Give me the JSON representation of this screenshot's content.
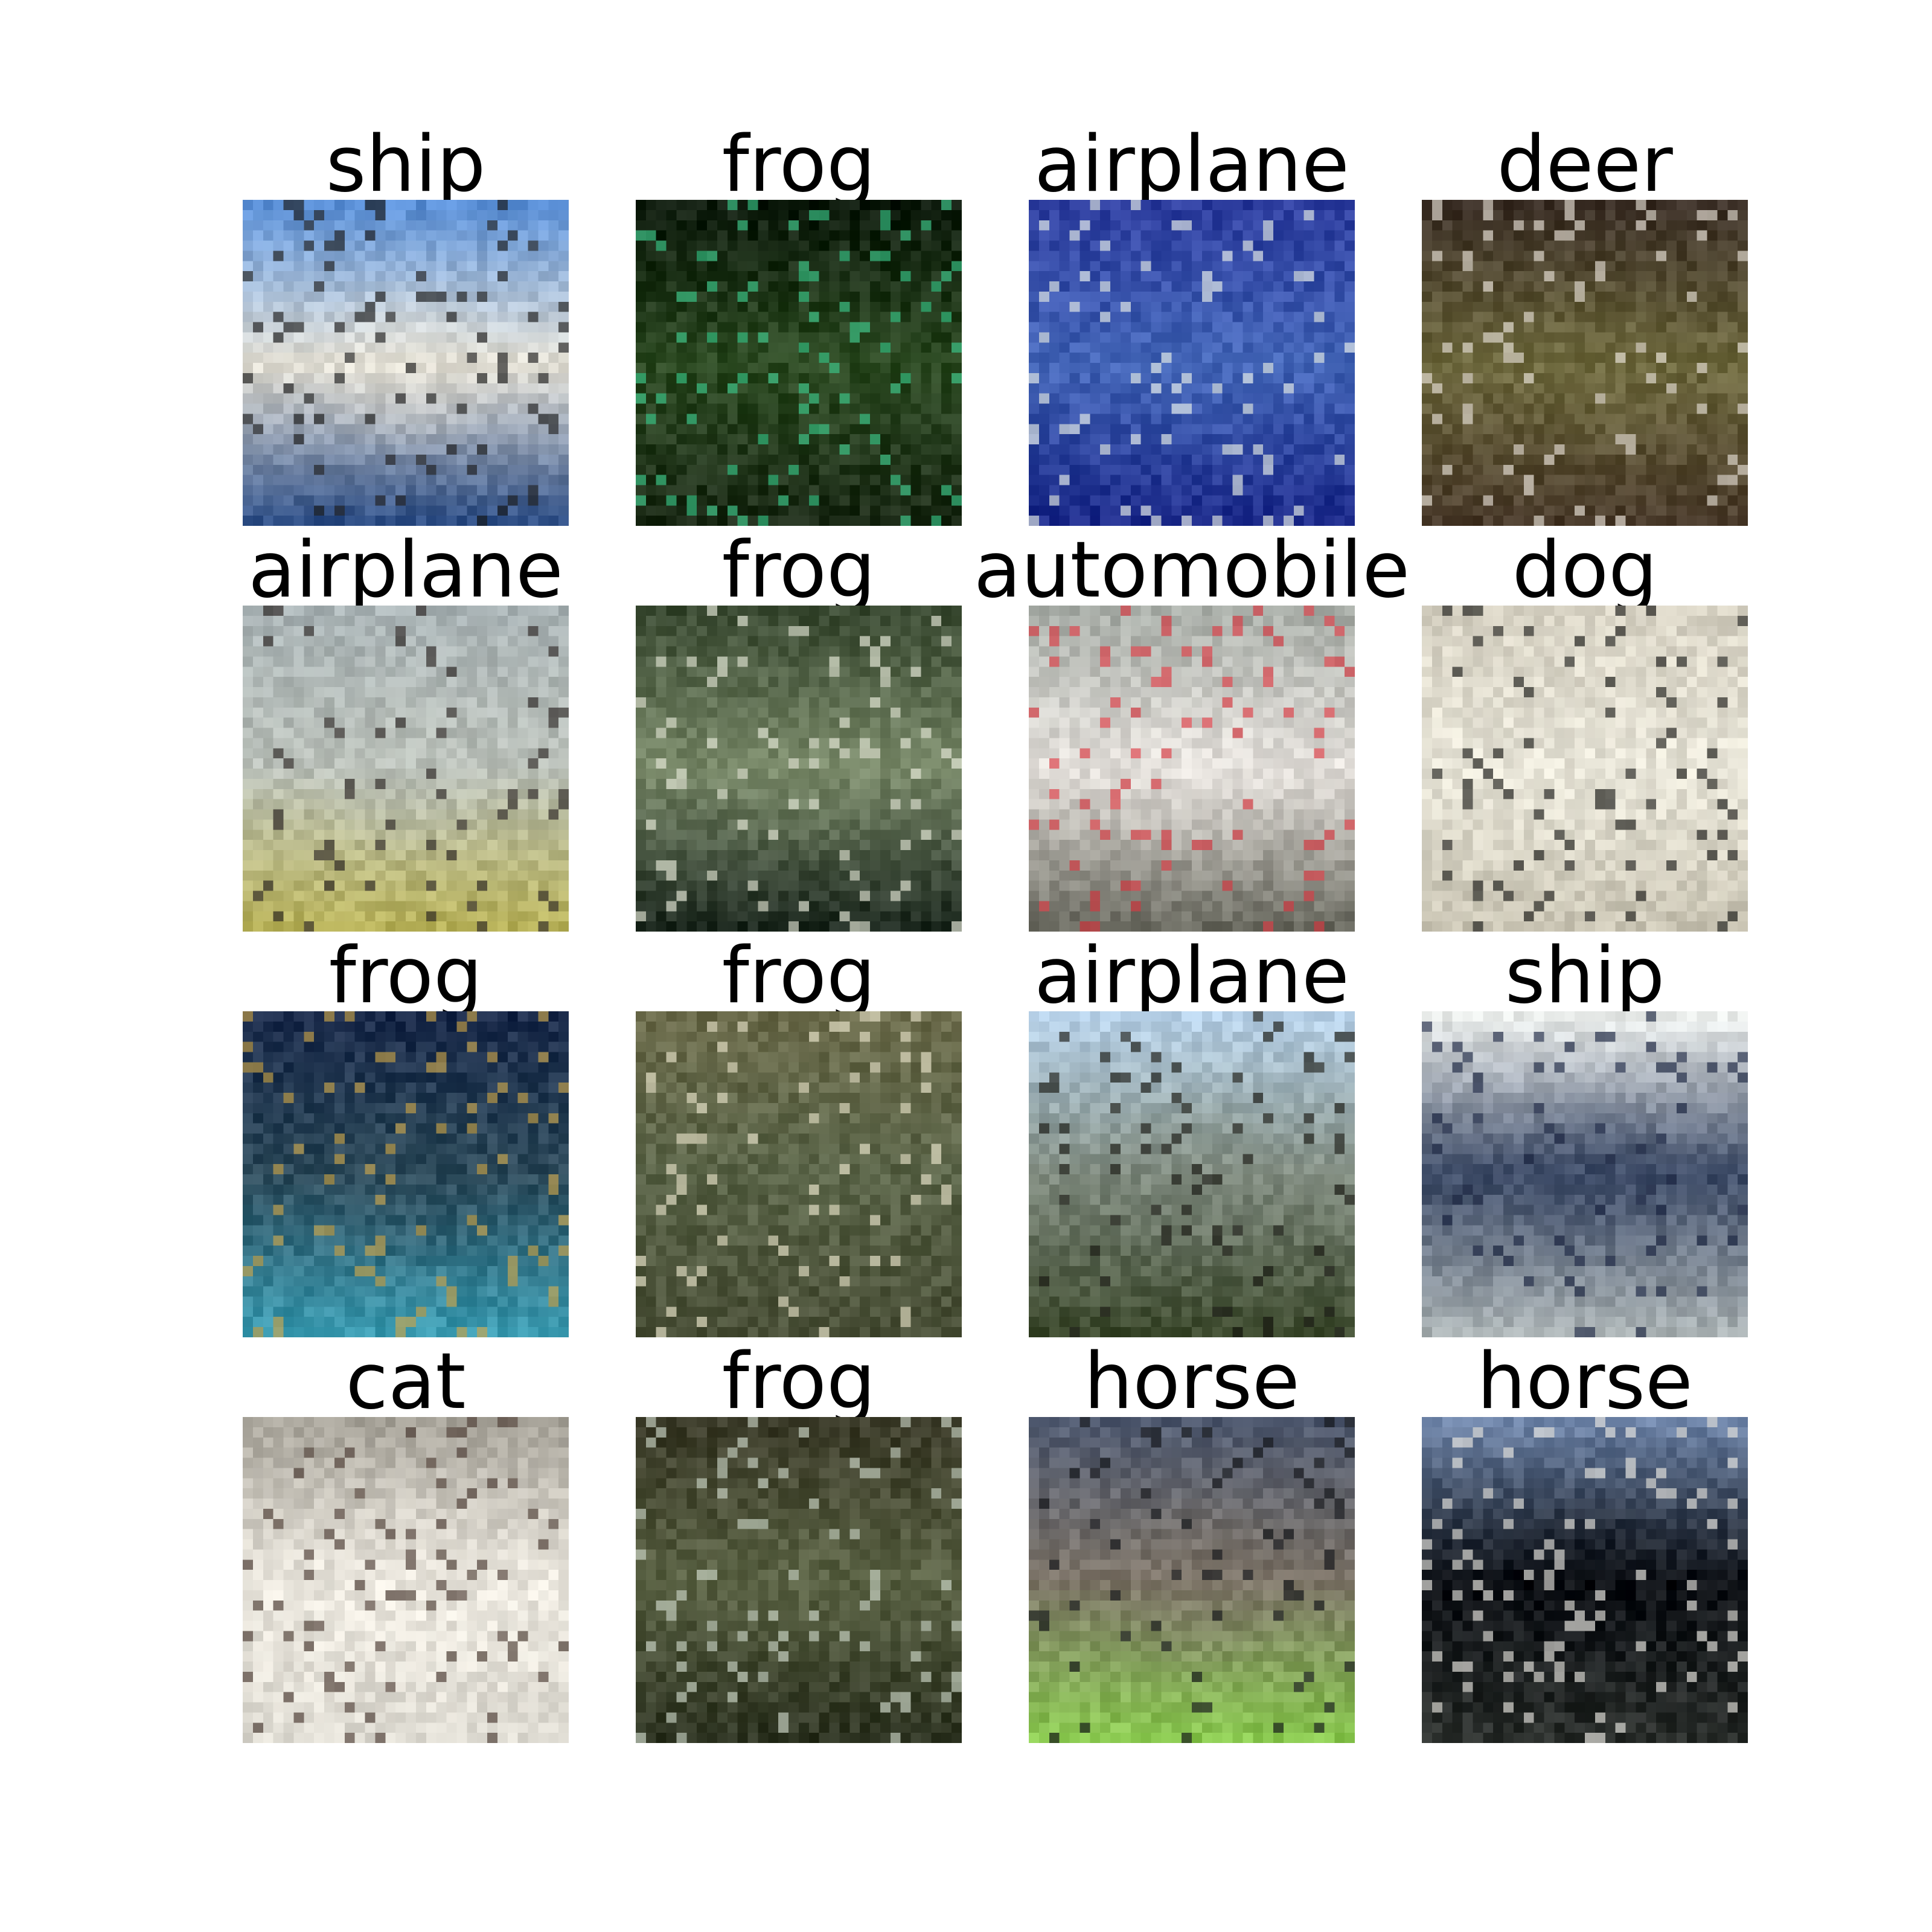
{
  "figure": {
    "background": "#ffffff",
    "grid": {
      "rows": 4,
      "cols": 4
    },
    "samples": [
      {
        "label": "ship",
        "palette": {
          "top": "#5a8fd6",
          "mid": "#e6e2d6",
          "bottom": "#2f4f86",
          "accent": "#1a1a1a"
        }
      },
      {
        "label": "frog",
        "palette": {
          "top": "#0d1a0c",
          "mid": "#2c4a22",
          "bottom": "#1b2a16",
          "accent": "#3bc88a"
        }
      },
      {
        "label": "airplane",
        "palette": {
          "top": "#2d3d9e",
          "mid": "#4466b8",
          "bottom": "#1c2a8a",
          "accent": "#e9efe8"
        }
      },
      {
        "label": "deer",
        "palette": {
          "top": "#3b2f26",
          "mid": "#6f6a3f",
          "bottom": "#4a3b2b",
          "accent": "#e6dfd5"
        }
      },
      {
        "label": "airplane",
        "palette": {
          "top": "#a9b3b5",
          "mid": "#b9bfb8",
          "bottom": "#b8b25a",
          "accent": "#2a2422"
        }
      },
      {
        "label": "frog",
        "palette": {
          "top": "#3a4a32",
          "mid": "#7a8a6a",
          "bottom": "#1e2a20",
          "accent": "#e3e6d5"
        }
      },
      {
        "label": "automobile",
        "palette": {
          "top": "#a7aca6",
          "mid": "#e5e1dc",
          "bottom": "#6a6a60",
          "accent": "#d8363f"
        }
      },
      {
        "label": "dog",
        "palette": {
          "top": "#d7d2c3",
          "mid": "#e8e5d8",
          "bottom": "#c9c4b3",
          "accent": "#1b1b18"
        }
      },
      {
        "label": "frog",
        "palette": {
          "top": "#1a2a4a",
          "mid": "#2d4a5a",
          "bottom": "#3a9ab0",
          "accent": "#c9a44a"
        }
      },
      {
        "label": "frog",
        "palette": {
          "top": "#6a6a4a",
          "mid": "#5a6448",
          "bottom": "#4a5038",
          "accent": "#e8e3c9"
        }
      },
      {
        "label": "airplane",
        "palette": {
          "top": "#b9d3ea",
          "mid": "#7f8a7e",
          "bottom": "#3d4a2e",
          "accent": "#1a1a14"
        }
      },
      {
        "label": "ship",
        "palette": {
          "top": "#ecefed",
          "mid": "#3c4a66",
          "bottom": "#a9b1b3",
          "accent": "#1a2440"
        }
      },
      {
        "label": "cat",
        "palette": {
          "top": "#a8a49a",
          "mid": "#ece8df",
          "bottom": "#dedbd2",
          "accent": "#4a3a32"
        }
      },
      {
        "label": "frog",
        "palette": {
          "top": "#3a3a28",
          "mid": "#5a6244",
          "bottom": "#2e3422",
          "accent": "#c9d3c4"
        }
      },
      {
        "label": "horse",
        "palette": {
          "top": "#505a70",
          "mid": "#7d7468",
          "bottom": "#8ac850",
          "accent": "#121418"
        }
      },
      {
        "label": "horse",
        "palette": {
          "top": "#6d83a7",
          "mid": "#0c0f14",
          "bottom": "#2b2f2c",
          "accent": "#e8e6e0"
        }
      }
    ]
  }
}
